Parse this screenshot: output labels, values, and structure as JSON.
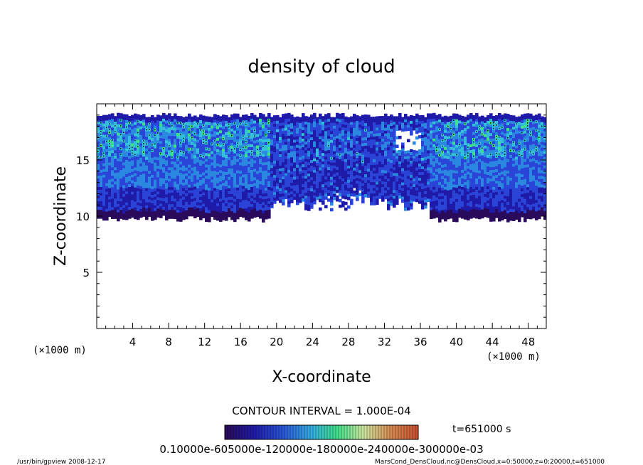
{
  "chart_data": {
    "type": "heatmap",
    "title": "density of cloud",
    "xlabel": "X-coordinate",
    "ylabel": "Z-coordinate",
    "x_unit": "(×1000 m)",
    "y_unit": "(×1000 m)",
    "xlim": [
      0,
      50
    ],
    "ylim": [
      0,
      20
    ],
    "x_ticks": [
      4,
      8,
      12,
      16,
      20,
      24,
      28,
      32,
      36,
      40,
      44,
      48
    ],
    "y_ticks": [
      5,
      10,
      15
    ],
    "contour_interval_text": "CONTOUR INTERVAL = 1.000E-04",
    "time_text": "t=651000 s",
    "colorbar_label_text": "0.10000e-605000e-120000e-180000e-240000e-300000e-03",
    "colors": [
      "#2a0a5a",
      "#1f1aa8",
      "#2a44d8",
      "#2a88e0",
      "#33c0d8",
      "#3fe08a",
      "#cfe6a0",
      "#d88a50",
      "#c85030"
    ],
    "cloud_layer": {
      "bottom_km": 10,
      "top_km": 19,
      "clear_patch_x_km": [
        20,
        36
      ]
    },
    "footer_left": "/usr/bin/gpview   2008-12-17",
    "footer_right": "MarsCond_DensCloud.nc@DensCloud,x=0:50000,z=0:20000,t=651000"
  }
}
